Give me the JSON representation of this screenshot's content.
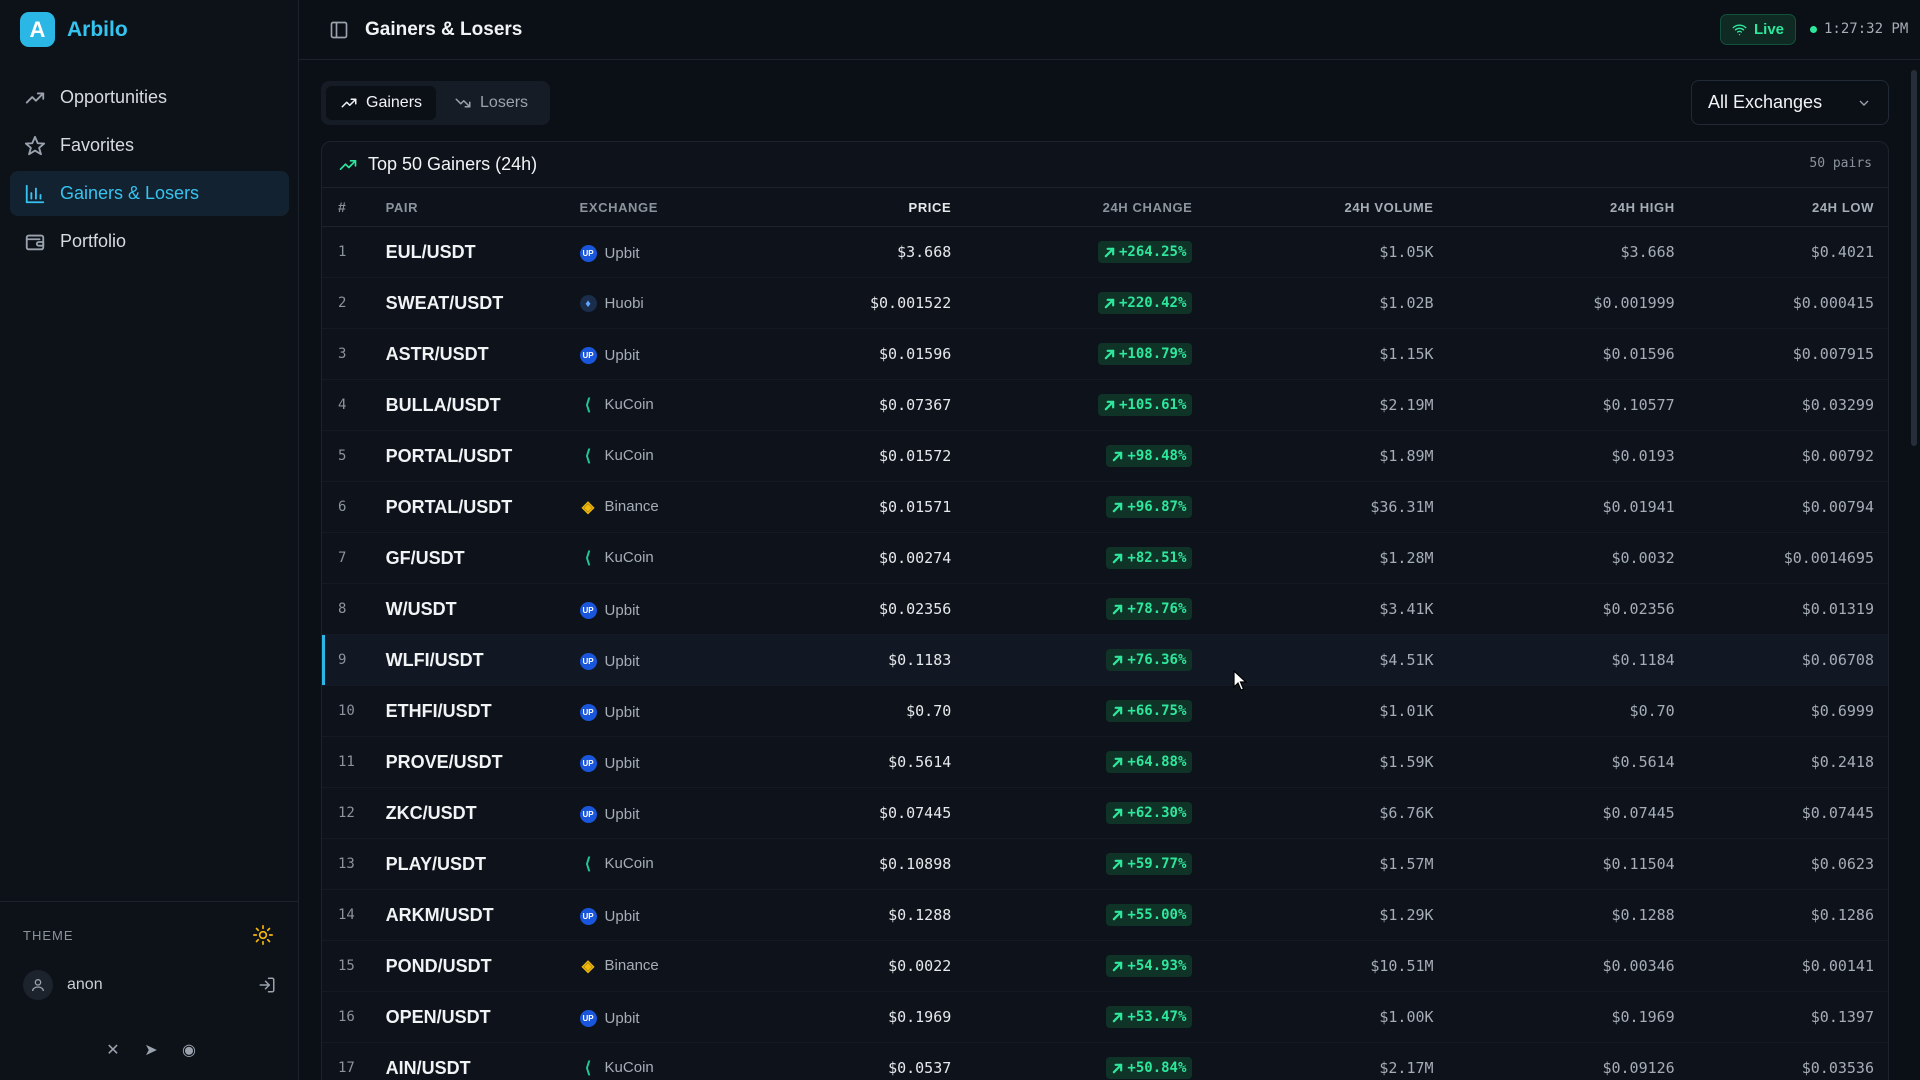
{
  "app": {
    "logo_letter": "A",
    "name": "Arbilo"
  },
  "nav": [
    {
      "label": "Opportunities",
      "icon": "trending-up-icon",
      "active": false
    },
    {
      "label": "Favorites",
      "icon": "star-icon",
      "active": false
    },
    {
      "label": "Gainers & Losers",
      "icon": "bar-chart-icon",
      "active": true
    },
    {
      "label": "Portfolio",
      "icon": "wallet-icon",
      "active": false
    }
  ],
  "sidebar_footer": {
    "theme_label": "THEME",
    "theme_icon": "sun-icon",
    "user": "anon",
    "socials": [
      "x-icon",
      "telegram-icon",
      "discord-icon"
    ]
  },
  "header": {
    "title": "Gainers & Losers",
    "live_label": "Live",
    "time": "1:27:32 PM"
  },
  "tabs": {
    "gainers": "Gainers",
    "losers": "Losers",
    "active": "Gainers"
  },
  "exchange_filter": {
    "selected": "All Exchanges"
  },
  "table": {
    "title": "Top 50 Gainers (24h)",
    "count": "50 pairs",
    "columns": {
      "idx": "#",
      "pair": "Pair",
      "exchange": "Exchange",
      "price": "Price",
      "change": "24h Change",
      "volume": "24h Volume",
      "high": "24h High",
      "low": "24h Low"
    },
    "rows": [
      {
        "idx": "1",
        "pair": "EUL/USDT",
        "exchange": "Upbit",
        "price": "$3.668",
        "change": "+264.25%",
        "volume": "$1.05K",
        "high": "$3.668",
        "low": "$0.4021"
      },
      {
        "idx": "2",
        "pair": "SWEAT/USDT",
        "exchange": "Huobi",
        "price": "$0.001522",
        "change": "+220.42%",
        "volume": "$1.02B",
        "high": "$0.001999",
        "low": "$0.000415"
      },
      {
        "idx": "3",
        "pair": "ASTR/USDT",
        "exchange": "Upbit",
        "price": "$0.01596",
        "change": "+108.79%",
        "volume": "$1.15K",
        "high": "$0.01596",
        "low": "$0.007915"
      },
      {
        "idx": "4",
        "pair": "BULLA/USDT",
        "exchange": "KuCoin",
        "price": "$0.07367",
        "change": "+105.61%",
        "volume": "$2.19M",
        "high": "$0.10577",
        "low": "$0.03299"
      },
      {
        "idx": "5",
        "pair": "PORTAL/USDT",
        "exchange": "KuCoin",
        "price": "$0.01572",
        "change": "+98.48%",
        "volume": "$1.89M",
        "high": "$0.0193",
        "low": "$0.00792"
      },
      {
        "idx": "6",
        "pair": "PORTAL/USDT",
        "exchange": "Binance",
        "price": "$0.01571",
        "change": "+96.87%",
        "volume": "$36.31M",
        "high": "$0.01941",
        "low": "$0.00794"
      },
      {
        "idx": "7",
        "pair": "GF/USDT",
        "exchange": "KuCoin",
        "price": "$0.00274",
        "change": "+82.51%",
        "volume": "$1.28M",
        "high": "$0.0032",
        "low": "$0.0014695"
      },
      {
        "idx": "8",
        "pair": "W/USDT",
        "exchange": "Upbit",
        "price": "$0.02356",
        "change": "+78.76%",
        "volume": "$3.41K",
        "high": "$0.02356",
        "low": "$0.01319"
      },
      {
        "idx": "9",
        "pair": "WLFI/USDT",
        "exchange": "Upbit",
        "price": "$0.1183",
        "change": "+76.36%",
        "volume": "$4.51K",
        "high": "$0.1184",
        "low": "$0.06708"
      },
      {
        "idx": "10",
        "pair": "ETHFI/USDT",
        "exchange": "Upbit",
        "price": "$0.70",
        "change": "+66.75%",
        "volume": "$1.01K",
        "high": "$0.70",
        "low": "$0.6999"
      },
      {
        "idx": "11",
        "pair": "PROVE/USDT",
        "exchange": "Upbit",
        "price": "$0.5614",
        "change": "+64.88%",
        "volume": "$1.59K",
        "high": "$0.5614",
        "low": "$0.2418"
      },
      {
        "idx": "12",
        "pair": "ZKC/USDT",
        "exchange": "Upbit",
        "price": "$0.07445",
        "change": "+62.30%",
        "volume": "$6.76K",
        "high": "$0.07445",
        "low": "$0.07445"
      },
      {
        "idx": "13",
        "pair": "PLAY/USDT",
        "exchange": "KuCoin",
        "price": "$0.10898",
        "change": "+59.77%",
        "volume": "$1.57M",
        "high": "$0.11504",
        "low": "$0.0623"
      },
      {
        "idx": "14",
        "pair": "ARKM/USDT",
        "exchange": "Upbit",
        "price": "$0.1288",
        "change": "+55.00%",
        "volume": "$1.29K",
        "high": "$0.1288",
        "low": "$0.1286"
      },
      {
        "idx": "15",
        "pair": "POND/USDT",
        "exchange": "Binance",
        "price": "$0.0022",
        "change": "+54.93%",
        "volume": "$10.51M",
        "high": "$0.00346",
        "low": "$0.00141"
      },
      {
        "idx": "16",
        "pair": "OPEN/USDT",
        "exchange": "Upbit",
        "price": "$0.1969",
        "change": "+53.47%",
        "volume": "$1.00K",
        "high": "$0.1969",
        "low": "$0.1397"
      },
      {
        "idx": "17",
        "pair": "AIN/USDT",
        "exchange": "KuCoin",
        "price": "$0.0537",
        "change": "+50.84%",
        "volume": "$2.17M",
        "high": "$0.09126",
        "low": "$0.03536"
      }
    ],
    "highlighted_row": "9"
  },
  "colors": {
    "accent": "#35c4f0",
    "positive": "#2ee79c",
    "background": "#0b0f16",
    "theme_icon": "#f5b70b"
  }
}
